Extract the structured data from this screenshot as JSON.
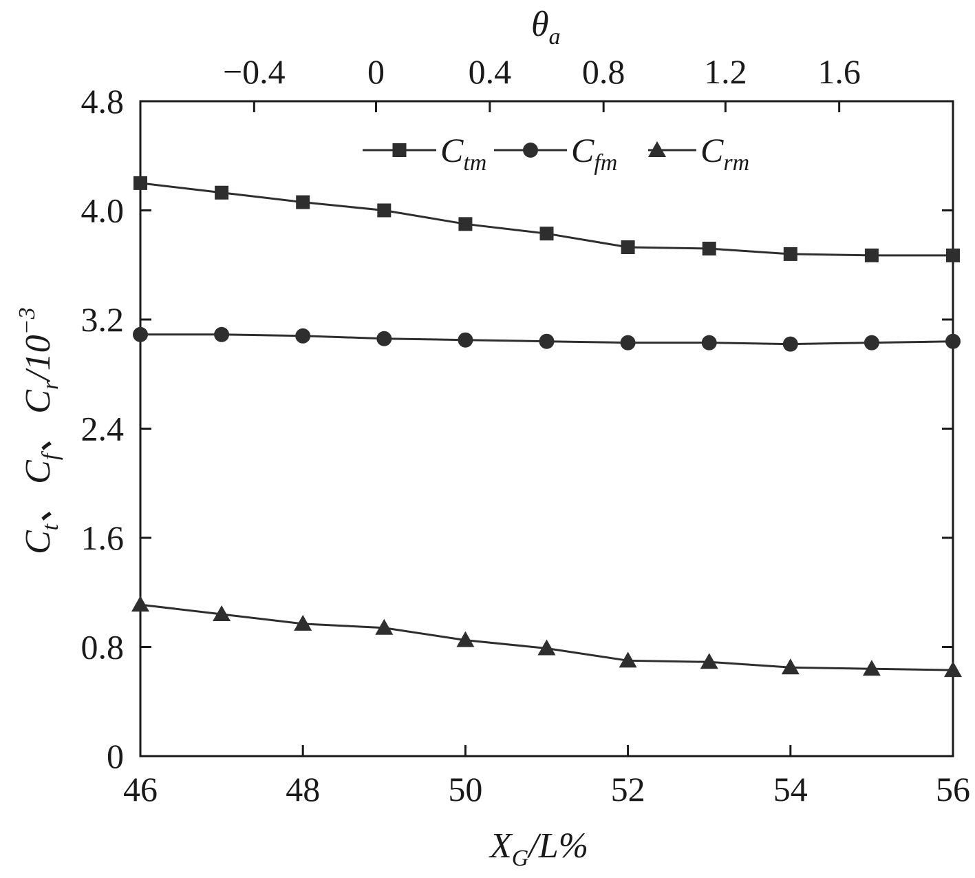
{
  "chart_data": {
    "type": "line",
    "x": [
      46,
      47,
      48,
      49,
      50,
      51,
      52,
      53,
      54,
      55,
      56
    ],
    "xlim": [
      46,
      56
    ],
    "ylim": [
      0,
      4.8
    ],
    "x_ticks": [
      46,
      48,
      50,
      52,
      54,
      56
    ],
    "x_tick_labels": [
      "46",
      "48",
      "50",
      "52",
      "54",
      "56"
    ],
    "y_ticks": [
      0,
      0.8,
      1.6,
      2.4,
      3.2,
      4.0,
      4.8
    ],
    "y_tick_labels": [
      "0",
      "0.8",
      "1.6",
      "2.4",
      "3.2",
      "4.0",
      "4.8"
    ],
    "top_axis": {
      "ticks": [
        -0.4,
        0,
        0.4,
        0.8,
        1.2,
        1.6
      ],
      "tick_labels": [
        "−0.4",
        "0",
        "0.4",
        "0.8",
        "1.2",
        "1.6"
      ],
      "tick_x_positions": [
        47.4,
        48.9,
        50.3,
        51.7,
        53.2,
        54.6
      ],
      "label_main": "θ",
      "label_sub": "a"
    },
    "xlabel": {
      "main_1": "X",
      "sub": "G",
      "main_2": "/L%"
    },
    "ylabel": {
      "t1": "C",
      "s1": "t",
      "sep1": "、",
      "t2": "C",
      "s2": "f",
      "sep2": "、",
      "t3": "C",
      "s3": "r",
      "rest": "/10",
      "exp": "−3"
    },
    "legend_position": "top-center",
    "grid": false,
    "series": [
      {
        "name": "C",
        "name_sub": "tm",
        "marker": "square",
        "values": [
          4.2,
          4.13,
          4.06,
          4.0,
          3.9,
          3.83,
          3.73,
          3.72,
          3.68,
          3.67,
          3.67
        ]
      },
      {
        "name": "C",
        "name_sub": "fm",
        "marker": "circle",
        "values": [
          3.09,
          3.09,
          3.08,
          3.06,
          3.05,
          3.04,
          3.03,
          3.03,
          3.02,
          3.03,
          3.04
        ]
      },
      {
        "name": "C",
        "name_sub": "rm",
        "marker": "triangle",
        "values": [
          1.11,
          1.04,
          0.97,
          0.94,
          0.85,
          0.79,
          0.7,
          0.69,
          0.65,
          0.64,
          0.63
        ]
      }
    ],
    "colors": {
      "line": "#2e2e2e",
      "axis": "#1a1a1a"
    }
  }
}
